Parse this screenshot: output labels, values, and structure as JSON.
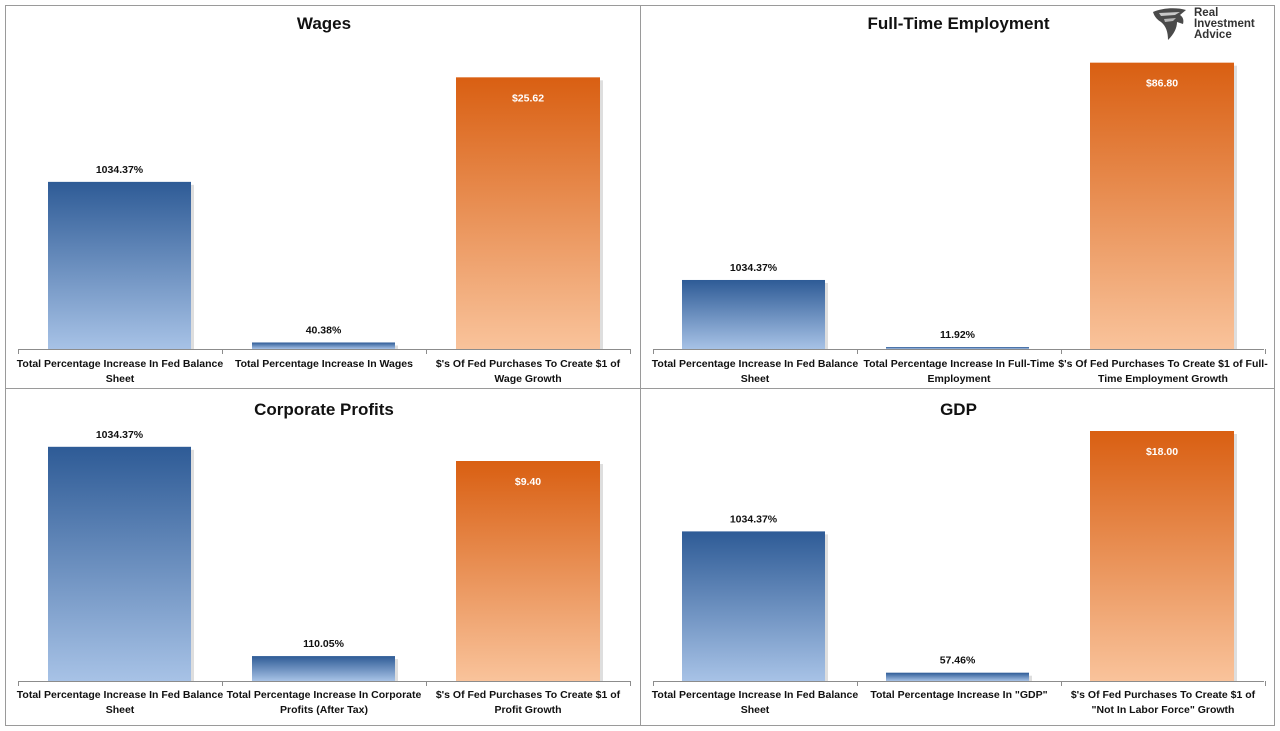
{
  "brand": {
    "line1": "Real",
    "line2": "Investment",
    "line3": "Advice"
  },
  "colors": {
    "blue_top": "#2e5b96",
    "blue_bottom": "#a7c2e6",
    "orange_top": "#d95f12",
    "orange_bottom": "#f9c39b",
    "axis": "#8c8c8c",
    "border": "#9a9a9a"
  },
  "chart_data": [
    {
      "type": "bar",
      "title": "Wages",
      "categories": [
        [
          "Total Percentage Increase In Fed Balance",
          "Sheet"
        ],
        [
          "Total Percentage Increase In Wages"
        ],
        [
          "$'s Of Fed Purchases To Create $1 of",
          "Wage Growth"
        ]
      ],
      "values": [
        1034.37,
        40.38,
        25.62
      ],
      "labels": [
        "1034.37%",
        "40.38%",
        "$25.62"
      ],
      "ylim": [
        0,
        1900
      ],
      "note": "third bar uses a separate scale"
    },
    {
      "type": "bar",
      "title": "Full-Time Employment",
      "categories": [
        [
          "Total Percentage Increase In Fed Balance",
          "Sheet"
        ],
        [
          "Total Percentage Increase In Full-Time",
          "Employment"
        ],
        [
          "$'s Of Fed Purchases To Create $1 of Full-",
          "Time Employment Growth"
        ]
      ],
      "values": [
        1034.37,
        11.92,
        86.8
      ],
      "labels": [
        "1034.37%",
        "11.92%",
        "$86.80"
      ],
      "ylim": [
        0,
        4600
      ]
    },
    {
      "type": "bar",
      "title": "Corporate Profits",
      "categories": [
        [
          "Total Percentage Increase In Fed Balance",
          "Sheet"
        ],
        [
          "Total Percentage Increase In Corporate",
          "Profits (After Tax)"
        ],
        [
          "$'s Of Fed Purchases To Create $1 of",
          "Profit Growth"
        ]
      ],
      "values": [
        1034.37,
        110.05,
        9.4
      ],
      "labels": [
        "1034.37%",
        "110.05%",
        "$9.40"
      ],
      "ylim": [
        0,
        1060
      ]
    },
    {
      "type": "bar",
      "title": "GDP",
      "categories": [
        [
          "Total Percentage Increase In Fed Balance",
          "Sheet"
        ],
        [
          "Total Percentage Increase In \"GDP\""
        ],
        [
          "$'s Of Fed Purchases To Create $1 of",
          "\"Not In Labor Force\" Growth"
        ]
      ],
      "values": [
        1034.37,
        57.46,
        18.0
      ],
      "labels": [
        "1034.37%",
        "57.46%",
        "$18.00"
      ],
      "ylim": [
        0,
        1770
      ]
    }
  ]
}
